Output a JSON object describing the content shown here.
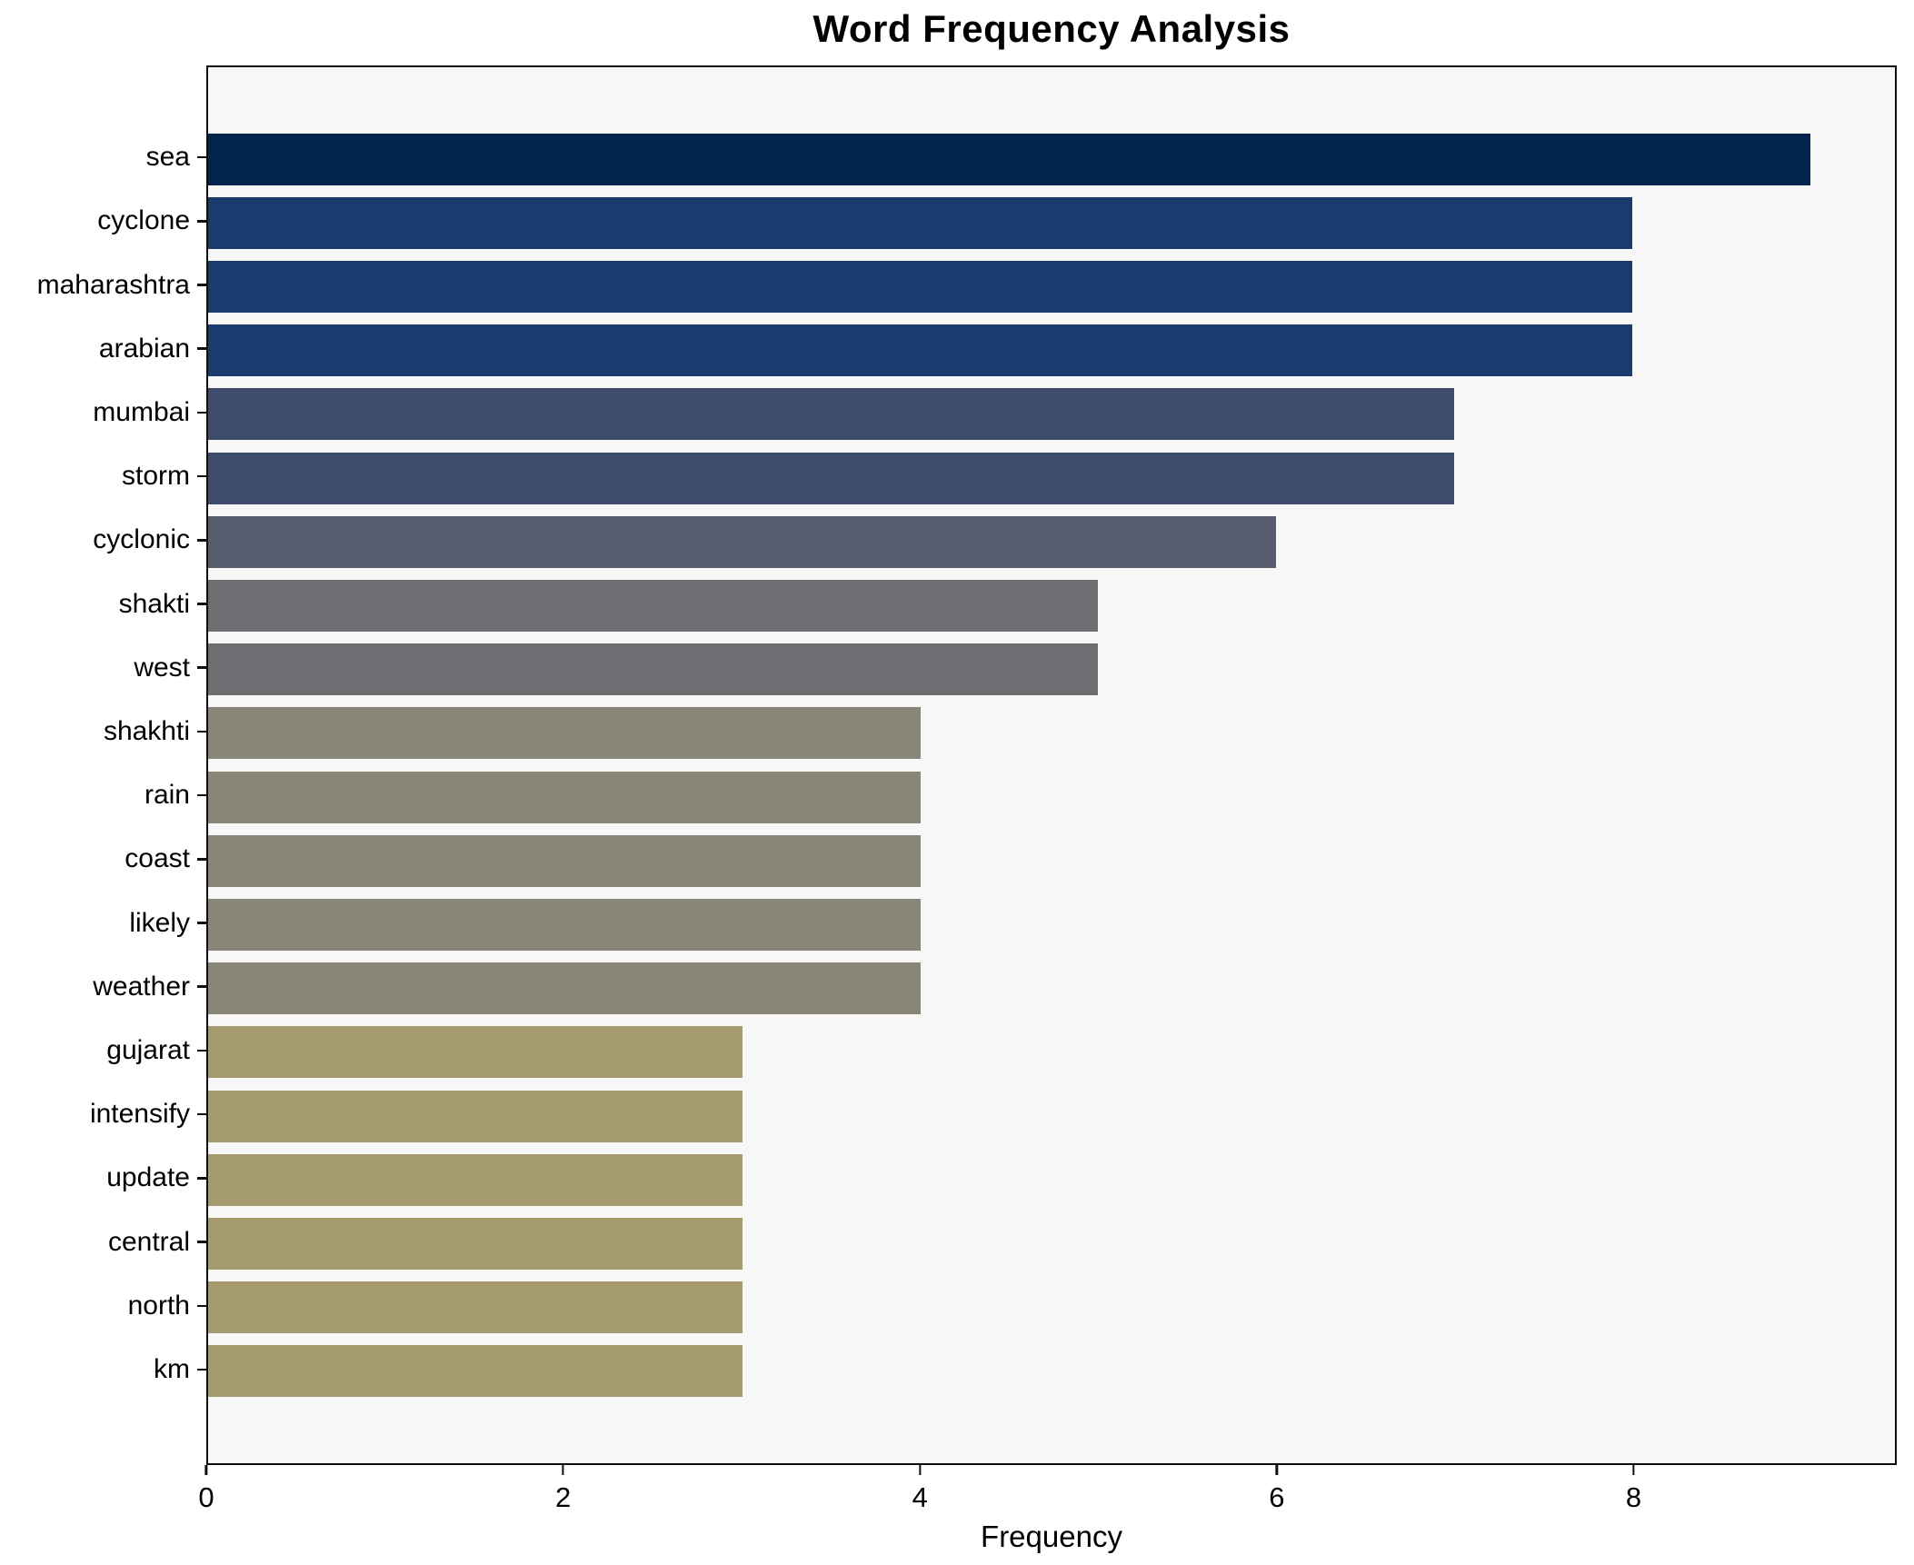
{
  "chart_data": {
    "type": "bar",
    "orientation": "horizontal",
    "title": "Word Frequency Analysis",
    "xlabel": "Frequency",
    "ylabel": "",
    "categories": [
      "sea",
      "cyclone",
      "maharashtra",
      "arabian",
      "mumbai",
      "storm",
      "cyclonic",
      "shakti",
      "west",
      "shakhti",
      "rain",
      "coast",
      "likely",
      "weather",
      "gujarat",
      "intensify",
      "update",
      "central",
      "north",
      "km"
    ],
    "values": [
      9,
      8,
      8,
      8,
      7,
      7,
      6,
      5,
      5,
      4,
      4,
      4,
      4,
      4,
      3,
      3,
      3,
      3,
      3,
      3
    ],
    "bar_colors": [
      "#02234d",
      "#1b3a6e",
      "#1b3a6e",
      "#1b3a6e",
      "#3e4c6b",
      "#3e4c6b",
      "#565b6d",
      "#6d6e71",
      "#6d6e71",
      "#898678",
      "#898678",
      "#898678",
      "#898678",
      "#898678",
      "#a59b6e",
      "#a59b6e",
      "#a59b6e",
      "#a59b6e",
      "#a59b6e",
      "#a59b6e"
    ],
    "xticks": [
      0,
      2,
      4,
      6,
      8
    ],
    "xlim": [
      0,
      9.475
    ],
    "grid": false,
    "legend": "none",
    "plot_background": "#f7f7f8",
    "figure_background": "#ffffff",
    "spine_color": "#0e0e0e",
    "bar_height_fraction": 0.8
  }
}
